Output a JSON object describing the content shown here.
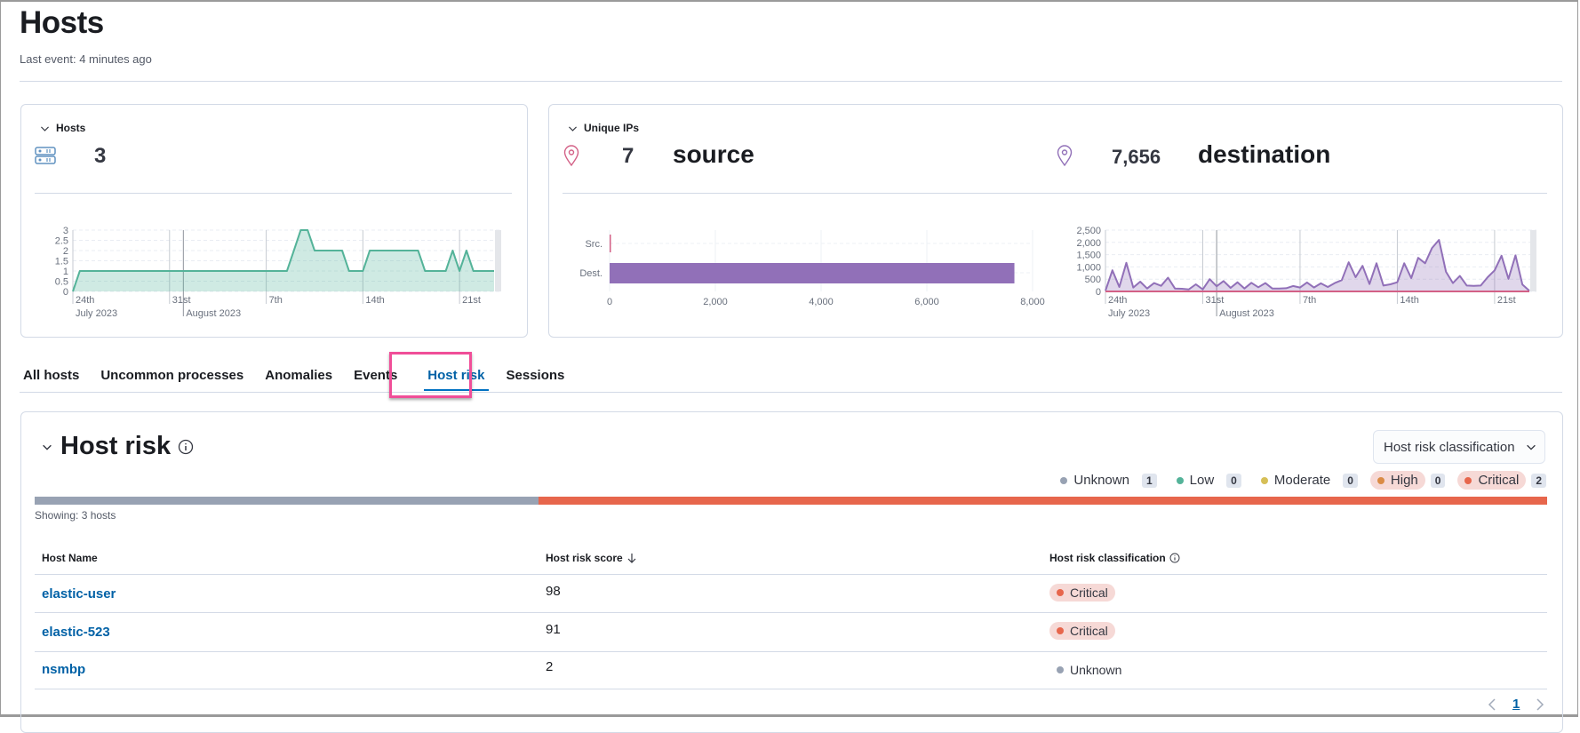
{
  "page": {
    "title": "Hosts",
    "last_event": "Last event: 4 minutes ago"
  },
  "hosts_card": {
    "label": "Hosts",
    "icon": "server-icon",
    "count": "3"
  },
  "ips_card": {
    "label": "Unique IPs",
    "source_count": "7",
    "source_label": "source",
    "destination_count": "7,656",
    "destination_label": "destination",
    "source_icon": "map-pin-icon",
    "destination_icon": "map-pin-icon"
  },
  "tabs": [
    {
      "label": "All hosts"
    },
    {
      "label": "Uncommon processes"
    },
    {
      "label": "Anomalies"
    },
    {
      "label": "Events"
    },
    {
      "label": "Host risk",
      "active": true
    },
    {
      "label": "Sessions"
    }
  ],
  "host_risk": {
    "title": "Host risk",
    "dropdown": "Host risk classification",
    "legend": [
      {
        "label": "Unknown",
        "count": "1",
        "color": "#98A2B3"
      },
      {
        "label": "Low",
        "count": "0",
        "color": "#54B399"
      },
      {
        "label": "Moderate",
        "count": "0",
        "color": "#D6BF57"
      },
      {
        "label": "High",
        "count": "0",
        "color": "#DA8B45"
      },
      {
        "label": "Critical",
        "count": "2",
        "color": "#E7664C"
      }
    ],
    "distribution": [
      {
        "label": "Unknown",
        "count": 1,
        "color": "#98A2B3"
      },
      {
        "label": "Critical",
        "count": 2,
        "color": "#E7664C"
      }
    ],
    "showing": "Showing: 3 hosts",
    "columns": [
      "Host Name",
      "Host risk score",
      "Host risk classification"
    ],
    "rows": [
      {
        "host": "elastic-user",
        "score": "98",
        "classification": "Critical"
      },
      {
        "host": "elastic-523",
        "score": "91",
        "classification": "Critical"
      },
      {
        "host": "nsmbp",
        "score": "2",
        "classification": "Unknown"
      }
    ],
    "page": "1"
  },
  "chart_data": [
    {
      "type": "area",
      "y_ticks": [
        "0",
        "0.5",
        "1",
        "1.5",
        "2",
        "2.5",
        "3"
      ],
      "ylim": [
        0,
        3
      ],
      "x_ticks": [
        "24th",
        "31st",
        "7th",
        "14th",
        "21st"
      ],
      "x_major": [
        "July 2023",
        "August 2023"
      ],
      "grid": true,
      "color": "#54B399",
      "x": [
        "2023-07-24 00:00",
        "2023-07-24 12:00",
        "2023-07-25 00:00",
        "2023-07-25 12:00",
        "2023-07-26 00:00",
        "2023-07-26 12:00",
        "2023-07-27 00:00",
        "2023-07-27 12:00",
        "2023-07-28 00:00",
        "2023-07-28 12:00",
        "2023-07-29 00:00",
        "2023-07-29 12:00",
        "2023-07-30 00:00",
        "2023-07-30 12:00",
        "2023-07-31 00:00",
        "2023-07-31 12:00",
        "2023-08-01 00:00",
        "2023-08-01 12:00",
        "2023-08-02 00:00",
        "2023-08-02 12:00",
        "2023-08-03 00:00",
        "2023-08-03 12:00",
        "2023-08-04 00:00",
        "2023-08-04 12:00",
        "2023-08-05 00:00",
        "2023-08-05 12:00",
        "2023-08-06 00:00",
        "2023-08-06 12:00",
        "2023-08-07 00:00",
        "2023-08-07 12:00",
        "2023-08-08 00:00",
        "2023-08-08 12:00",
        "2023-08-09 00:00",
        "2023-08-09 12:00",
        "2023-08-10 00:00",
        "2023-08-10 12:00",
        "2023-08-11 00:00",
        "2023-08-11 12:00",
        "2023-08-12 00:00",
        "2023-08-12 12:00",
        "2023-08-13 00:00",
        "2023-08-13 12:00",
        "2023-08-14 00:00",
        "2023-08-14 12:00",
        "2023-08-15 00:00",
        "2023-08-15 12:00",
        "2023-08-16 00:00",
        "2023-08-16 12:00",
        "2023-08-17 00:00",
        "2023-08-17 12:00",
        "2023-08-18 00:00",
        "2023-08-18 12:00",
        "2023-08-19 00:00",
        "2023-08-19 12:00",
        "2023-08-20 00:00",
        "2023-08-20 12:00",
        "2023-08-21 00:00",
        "2023-08-21 12:00",
        "2023-08-22 00:00",
        "2023-08-22 12:00",
        "2023-08-23 00:00",
        "2023-08-23 12:00"
      ],
      "values": [
        0,
        1,
        1,
        1,
        1,
        1,
        1,
        1,
        1,
        1,
        1,
        1,
        1,
        1,
        1,
        1,
        1,
        1,
        1,
        1,
        1,
        1,
        1,
        1,
        1,
        1,
        1,
        1,
        1,
        1,
        1,
        1,
        2,
        3,
        3,
        2,
        2,
        2,
        2,
        2,
        1,
        1,
        1,
        2,
        2,
        2,
        2,
        2,
        2,
        2,
        2,
        1,
        1,
        1,
        1,
        2,
        1,
        2,
        1,
        1,
        1,
        1
      ]
    },
    {
      "type": "bar",
      "orientation": "horizontal",
      "categories": [
        "Src.",
        "Dest."
      ],
      "values": [
        7,
        7656
      ],
      "x_ticks": [
        "0",
        "2,000",
        "4,000",
        "6,000",
        "8,000"
      ],
      "xlim": [
        0,
        8000
      ],
      "colors": [
        "#D36086",
        "#9170B8"
      ],
      "grid": true
    },
    {
      "type": "area",
      "y_ticks": [
        "0",
        "500",
        "1,000",
        "1,500",
        "2,000",
        "2,500"
      ],
      "ylim": [
        0,
        2500
      ],
      "x_ticks": [
        "24th",
        "31st",
        "7th",
        "14th",
        "21st"
      ],
      "x_major": [
        "July 2023",
        "August 2023"
      ],
      "grid": true,
      "x": [
        "2023-07-24 00:00",
        "2023-07-24 12:00",
        "2023-07-25 00:00",
        "2023-07-25 12:00",
        "2023-07-26 00:00",
        "2023-07-26 12:00",
        "2023-07-27 00:00",
        "2023-07-27 12:00",
        "2023-07-28 00:00",
        "2023-07-28 12:00",
        "2023-07-29 00:00",
        "2023-07-29 12:00",
        "2023-07-30 00:00",
        "2023-07-30 12:00",
        "2023-07-31 00:00",
        "2023-07-31 12:00",
        "2023-08-01 00:00",
        "2023-08-01 12:00",
        "2023-08-02 00:00",
        "2023-08-02 12:00",
        "2023-08-03 00:00",
        "2023-08-03 12:00",
        "2023-08-04 00:00",
        "2023-08-04 12:00",
        "2023-08-05 00:00",
        "2023-08-05 12:00",
        "2023-08-06 00:00",
        "2023-08-06 12:00",
        "2023-08-07 00:00",
        "2023-08-07 12:00",
        "2023-08-08 00:00",
        "2023-08-08 12:00",
        "2023-08-09 00:00",
        "2023-08-09 12:00",
        "2023-08-10 00:00",
        "2023-08-10 12:00",
        "2023-08-11 00:00",
        "2023-08-11 12:00",
        "2023-08-12 00:00",
        "2023-08-12 12:00",
        "2023-08-13 00:00",
        "2023-08-13 12:00",
        "2023-08-14 00:00",
        "2023-08-14 12:00",
        "2023-08-15 00:00",
        "2023-08-15 12:00",
        "2023-08-16 00:00",
        "2023-08-16 12:00",
        "2023-08-17 00:00",
        "2023-08-17 12:00",
        "2023-08-18 00:00",
        "2023-08-18 12:00",
        "2023-08-19 00:00",
        "2023-08-19 12:00",
        "2023-08-20 00:00",
        "2023-08-20 12:00",
        "2023-08-21 00:00",
        "2023-08-21 12:00",
        "2023-08-22 00:00",
        "2023-08-22 12:00",
        "2023-08-23 00:00",
        "2023-08-23 12:00"
      ],
      "series": [
        {
          "color": "#9170B8",
          "values": [
            30,
            862,
            180,
            1165,
            160,
            400,
            120,
            340,
            230,
            560,
            120,
            110,
            85,
            290,
            85,
            500,
            210,
            425,
            145,
            375,
            120,
            350,
            170,
            340,
            120,
            120,
            130,
            220,
            160,
            365,
            160,
            330,
            180,
            340,
            460,
            1190,
            580,
            1045,
            300,
            1150,
            240,
            290,
            375,
            1150,
            545,
            1370,
            1150,
            1770,
            2100,
            800,
            340,
            630,
            240,
            230,
            240,
            580,
            860,
            1455,
            510,
            1470,
            280,
            30
          ]
        },
        {
          "color": "#D36086",
          "values": [
            0,
            0,
            0,
            0,
            0,
            0,
            0,
            0,
            0,
            0,
            0,
            0,
            0,
            0,
            0,
            0,
            0,
            0,
            0,
            0,
            0,
            0,
            0,
            0,
            0,
            0,
            0,
            0,
            0,
            0,
            0,
            0,
            0,
            0,
            0,
            0,
            0,
            0,
            0,
            0,
            0,
            0,
            0,
            0,
            0,
            0,
            0,
            0,
            0,
            0,
            0,
            0,
            0,
            0,
            0,
            0,
            0,
            0,
            0,
            0,
            0,
            0
          ]
        }
      ]
    }
  ]
}
